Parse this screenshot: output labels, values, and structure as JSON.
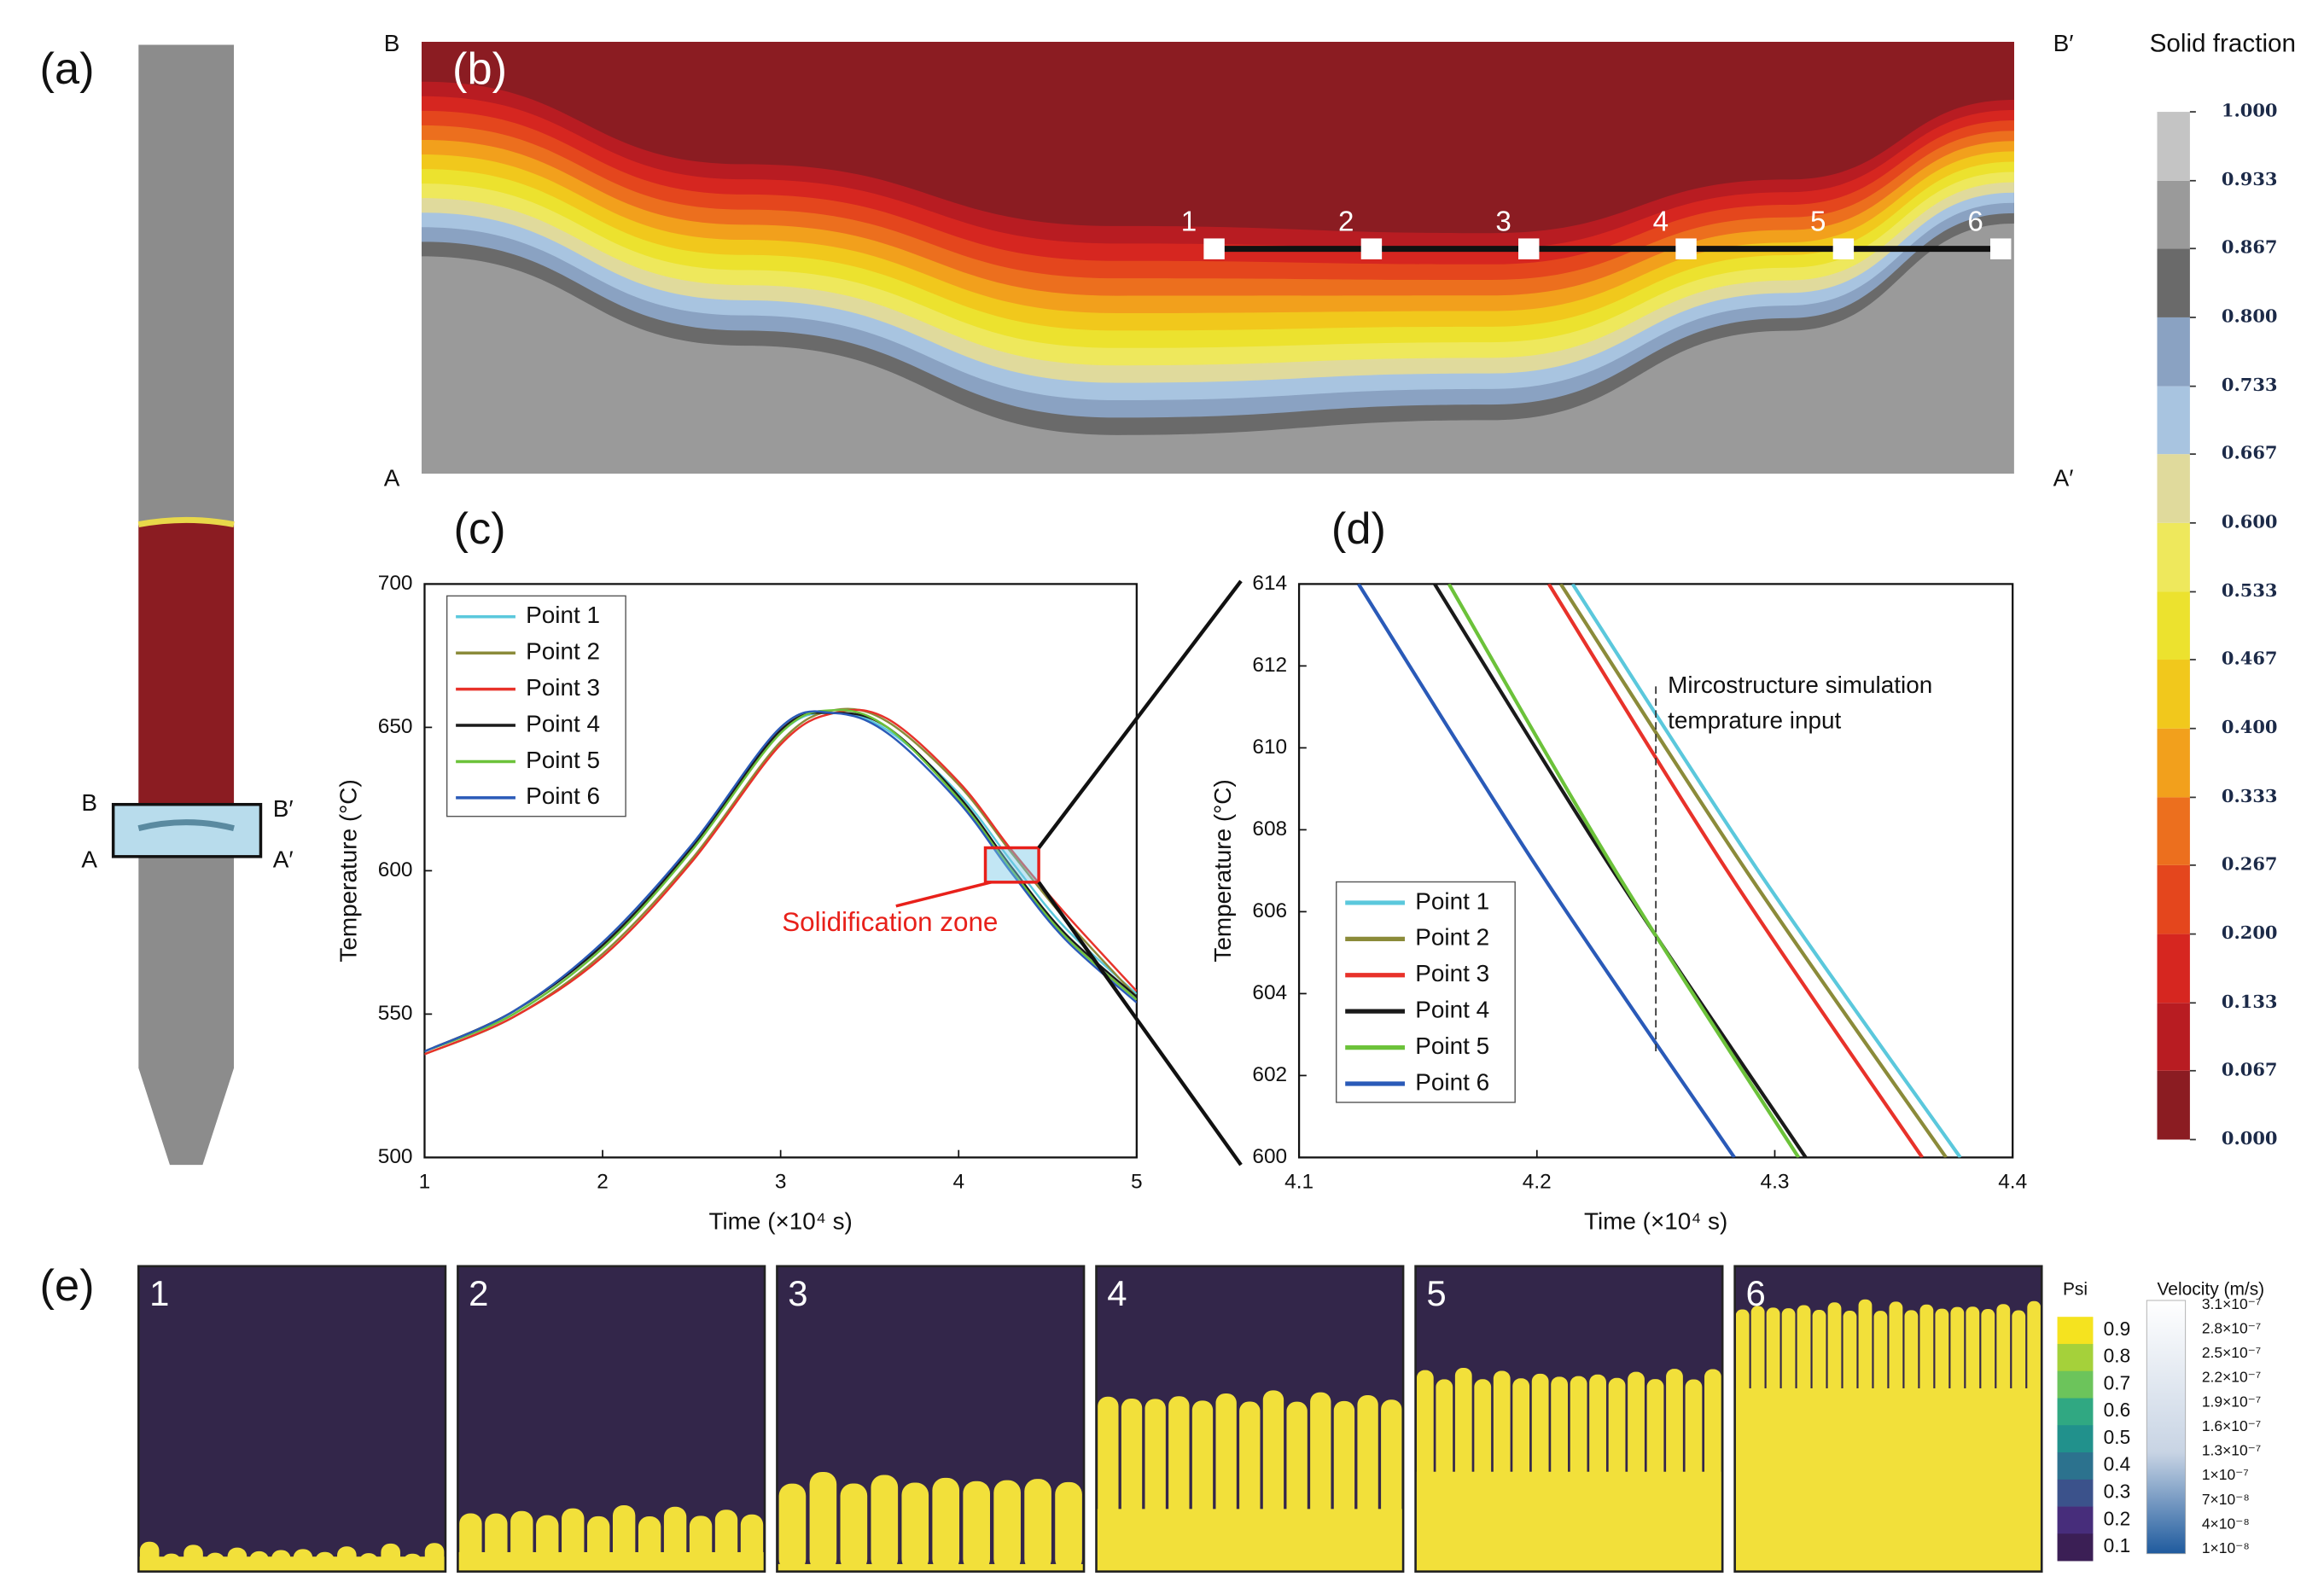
{
  "panel_labels": [
    "(a)",
    "(b)",
    "(c)",
    "(d)",
    "(e)"
  ],
  "panel_a": {
    "labels": [
      "B",
      "B′",
      "A",
      "A′"
    ]
  },
  "panel_b": {
    "corner_labels": [
      "B",
      "B′",
      "A",
      "A′"
    ],
    "points": [
      "1",
      "2",
      "3",
      "4",
      "5",
      "6"
    ]
  },
  "solid_fraction": {
    "title": "Solid fraction",
    "ticks": [
      {
        "value": 0,
        "label": "0.000"
      },
      {
        "value": 0.067,
        "label": "0.067"
      },
      {
        "value": 0.133,
        "label": "0.133"
      },
      {
        "value": 0.2,
        "label": "0.200"
      },
      {
        "value": 0.267,
        "label": "0.267"
      },
      {
        "value": 0.333,
        "label": "0.333"
      },
      {
        "value": 0.4,
        "label": "0.400"
      },
      {
        "value": 0.467,
        "label": "0.467"
      },
      {
        "value": 0.533,
        "label": "0.533"
      },
      {
        "value": 0.6,
        "label": "0.600"
      },
      {
        "value": 0.667,
        "label": "0.667"
      },
      {
        "value": 0.733,
        "label": "0.733"
      },
      {
        "value": 0.8,
        "label": "0.800"
      },
      {
        "value": 0.867,
        "label": "0.867"
      },
      {
        "value": 0.933,
        "label": "0.933"
      },
      {
        "value": 1,
        "label": "1.000"
      }
    ],
    "colors": [
      "#8b1c22",
      "#b81c22",
      "#d62620",
      "#e4461d",
      "#ec6f1e",
      "#f2a01c",
      "#f1c81c",
      "#ece22e",
      "#eee85c",
      "#e0da9c",
      "#a8c4e0",
      "#8aa2c2",
      "#6a6a6a",
      "#9a9a9a",
      "#c4c4c4"
    ]
  },
  "chart_data": [
    {
      "type": "line",
      "xlabel": "Time (×10⁴ s)",
      "ylabel": "Temperature (°C)",
      "xlim": [
        1,
        5
      ],
      "ylim": [
        500,
        700
      ],
      "xticks": [
        1,
        2,
        3,
        4,
        5
      ],
      "yticks": [
        500,
        550,
        600,
        650,
        700
      ],
      "x": [
        1,
        1.5,
        2,
        2.5,
        3,
        3.3,
        3.6,
        4,
        4.3,
        4.6,
        5
      ],
      "series": [
        {
          "name": "Point 1",
          "color": "#5bc8dc",
          "values": [
            537,
            550,
            573,
            607,
            648,
            655,
            649,
            627,
            603,
            580,
            557
          ]
        },
        {
          "name": "Point 2",
          "color": "#8b8b3a",
          "values": [
            536,
            549,
            571,
            604,
            645,
            656,
            652,
            630,
            606,
            583,
            556
          ]
        },
        {
          "name": "Point 3",
          "color": "#e8322a",
          "values": [
            536,
            549,
            570,
            603,
            644,
            655,
            653,
            631,
            607,
            585,
            558
          ]
        },
        {
          "name": "Point 4",
          "color": "#1a1a1a",
          "values": [
            537,
            551,
            574,
            608,
            649,
            655,
            650,
            626,
            601,
            578,
            556
          ]
        },
        {
          "name": "Point 5",
          "color": "#6cc23a",
          "values": [
            537,
            550,
            573,
            607,
            648,
            656,
            650,
            625,
            600,
            577,
            555
          ]
        },
        {
          "name": "Point 6",
          "color": "#2a5ab8",
          "values": [
            537,
            551,
            575,
            609,
            650,
            655,
            648,
            624,
            599,
            576,
            554
          ]
        }
      ],
      "annotation": "Solidification zone",
      "zoom_box": {
        "xlim": [
          4.15,
          4.45
        ],
        "ylim": [
          596,
          608
        ]
      }
    },
    {
      "type": "line",
      "xlabel": "Time (×10⁴ s)",
      "ylabel": "Temperature (°C)",
      "xlim": [
        4.1,
        4.4
      ],
      "ylim": [
        600,
        614
      ],
      "xticks": [
        4.1,
        4.2,
        4.3,
        4.4
      ],
      "yticks": [
        600,
        602,
        604,
        606,
        608,
        610,
        612,
        614
      ],
      "series": [
        {
          "name": "Point 1",
          "color": "#5bc8dc",
          "x": [
            4.215,
            4.293,
            4.378
          ],
          "values": [
            614,
            607,
            600
          ]
        },
        {
          "name": "Point 2",
          "color": "#8b8b3a",
          "x": [
            4.21,
            4.288,
            4.372
          ],
          "values": [
            614,
            607,
            600
          ]
        },
        {
          "name": "Point 3",
          "color": "#e8322a",
          "x": [
            4.205,
            4.28,
            4.362
          ],
          "values": [
            614,
            607,
            600
          ]
        },
        {
          "name": "Point 4",
          "color": "#1a1a1a",
          "x": [
            4.157,
            4.232,
            4.313
          ],
          "values": [
            614,
            607,
            600
          ]
        },
        {
          "name": "Point 5",
          "color": "#6cc23a",
          "x": [
            4.163,
            4.233,
            4.31
          ],
          "values": [
            614,
            607,
            600
          ]
        },
        {
          "name": "Point 6",
          "color": "#2a5ab8",
          "x": [
            4.125,
            4.201,
            4.283
          ],
          "values": [
            614,
            607,
            600
          ]
        }
      ],
      "vline": 4.25,
      "vline_range": [
        602.5,
        611.5
      ],
      "annotation": [
        "Mircostructure simulation",
        "temprature input"
      ]
    }
  ],
  "panel_e": {
    "images": [
      "1",
      "2",
      "3",
      "4",
      "5",
      "6"
    ],
    "psi": {
      "title": "Psi",
      "ticks": [
        0.9,
        0.8,
        0.7,
        0.6,
        0.5,
        0.4,
        0.3,
        0.2,
        0.1
      ],
      "colors": [
        "#f5e31f",
        "#a5d13a",
        "#6cc45b",
        "#30a882",
        "#21918c",
        "#2c728e",
        "#3b528b",
        "#472d7b",
        "#3b1f55"
      ]
    },
    "velocity": {
      "title": "Velocity (m/s)",
      "labels": [
        "3.1×10⁻⁷",
        "2.8×10⁻⁷",
        "2.5×10⁻⁷",
        "2.2×10⁻⁷",
        "1.9×10⁻⁷",
        "1.6×10⁻⁷",
        "1.3×10⁻⁷",
        "1×10⁻⁷",
        "7×10⁻⁸",
        "4×10⁻⁸",
        "1×10⁻⁸"
      ]
    }
  }
}
